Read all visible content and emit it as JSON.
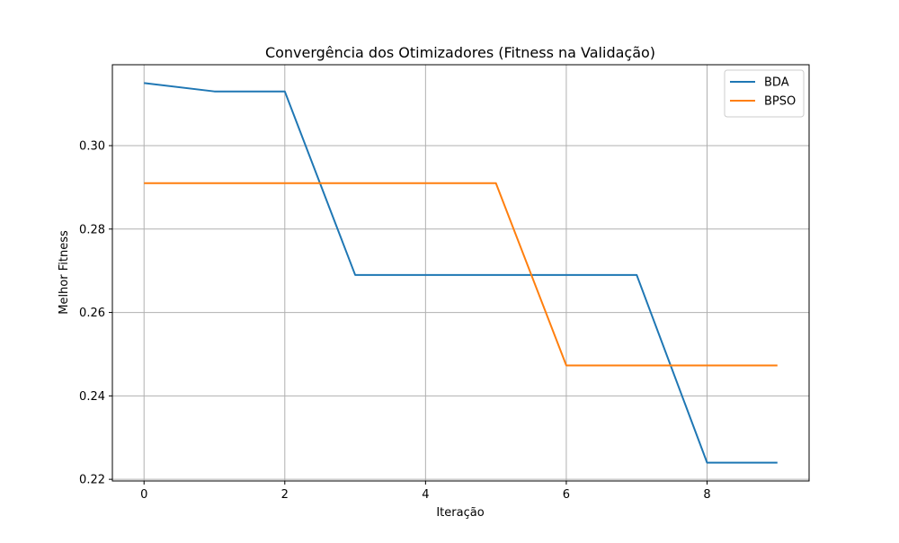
{
  "chart_data": {
    "type": "line",
    "title": "Convergência dos Otimizadores (Fitness na Validação)",
    "xlabel": "Iteração",
    "ylabel": "Melhor Fitness",
    "x": [
      0,
      1,
      2,
      3,
      4,
      5,
      6,
      7,
      8,
      9
    ],
    "xlim": [
      -0.45,
      9.45
    ],
    "ylim": [
      0.2196,
      0.3194
    ],
    "xticks": [
      0,
      2,
      4,
      6,
      8
    ],
    "xtick_labels": [
      "0",
      "2",
      "4",
      "6",
      "8"
    ],
    "yticks": [
      0.22,
      0.24,
      0.26,
      0.28,
      0.3
    ],
    "ytick_labels": [
      "0.22",
      "0.24",
      "0.26",
      "0.28",
      "0.30"
    ],
    "grid": true,
    "legend_position": "top-right",
    "series": [
      {
        "name": "BDA",
        "color": "#1f77b4",
        "values": [
          0.315,
          0.313,
          0.313,
          0.269,
          0.269,
          0.269,
          0.269,
          0.269,
          0.224,
          0.224
        ]
      },
      {
        "name": "BPSO",
        "color": "#ff7f0e",
        "values": [
          0.291,
          0.291,
          0.291,
          0.291,
          0.291,
          0.291,
          0.2473,
          0.2473,
          0.2473,
          0.2473
        ]
      }
    ]
  }
}
